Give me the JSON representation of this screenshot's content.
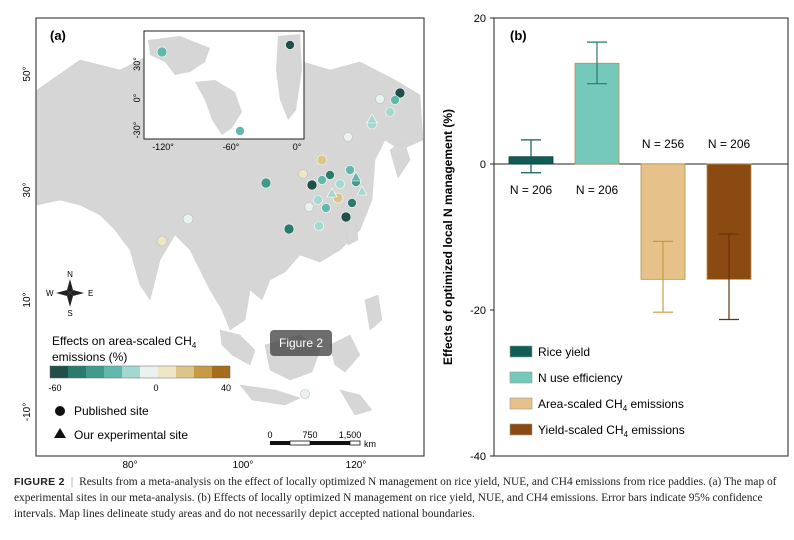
{
  "panel_a": {
    "label": "(a)",
    "lat_ticks": [
      "50°",
      "30°",
      "10°",
      "-10°"
    ],
    "lon_ticks": [
      "80°",
      "100°",
      "120°"
    ],
    "inset_lat_ticks": [
      "30°",
      "0°",
      "-30°"
    ],
    "inset_lon_ticks": [
      "-120°",
      "-60°",
      "0°"
    ],
    "compass": {
      "n": "N",
      "s": "S",
      "e": "E",
      "w": "W"
    },
    "legend": {
      "title_line1": "Effects on area-scaled CH",
      "title_sub": "4",
      "title_line2": "emissions (%)",
      "scale_labels": [
        "-60",
        "0",
        "40"
      ],
      "colors": [
        "#1f4f48",
        "#2a7a6d",
        "#3f9a8c",
        "#63b8ad",
        "#a3d8d0",
        "#e9f2ee",
        "#efe6c6",
        "#ddc58a",
        "#c79a45",
        "#a66b1c"
      ],
      "published": "Published site",
      "experimental": "Our experimental site"
    },
    "scalebar": {
      "labels": [
        "0",
        "750",
        "1,500"
      ],
      "unit": "km"
    },
    "tag": "Figure 2"
  },
  "chart_data": {
    "type": "bar",
    "label": "(b)",
    "ylabel": "Effects of optimized local N management (%)",
    "ylim": [
      -40,
      20
    ],
    "yticks": [
      "20",
      "0",
      "-20",
      "-40"
    ],
    "categories": [
      "Rice yield",
      "N use efficiency",
      "Area-scaled CH4 emissions",
      "Yield-scaled CH4 emissions"
    ],
    "values": [
      1.0,
      13.8,
      -15.8,
      -15.8
    ],
    "ci_low": [
      -1.2,
      11.0,
      -20.3,
      -21.3
    ],
    "ci_high": [
      3.3,
      16.7,
      -10.6,
      -9.6
    ],
    "n_labels": [
      "N = 206",
      "N = 206",
      "N = 256",
      "N = 206"
    ],
    "colors": [
      "#0f5d55",
      "#74c9bb",
      "#e6c28a",
      "#8a4a12"
    ],
    "legend": [
      {
        "text": "Rice yield",
        "sub": ""
      },
      {
        "text": "N use efficiency",
        "sub": ""
      },
      {
        "text": "Area-scaled CH",
        "sub": "4",
        "tail": " emissions"
      },
      {
        "text": "Yield-scaled CH",
        "sub": "4",
        "tail": " emissions"
      }
    ]
  },
  "caption": {
    "figure": "FIGURE 2",
    "text": "Results from a meta-analysis on the effect of locally optimized N management on rice yield, NUE, and CH4 emissions from rice paddies. (a) The map of experimental sites in our meta-analysis. (b) Effects of locally optimized N management on rice yield, NUE, and CH4 emissions. Error bars indicate 95% confidence intervals. Map lines delineate study areas and do not necessarily depict accepted national boundaries."
  }
}
